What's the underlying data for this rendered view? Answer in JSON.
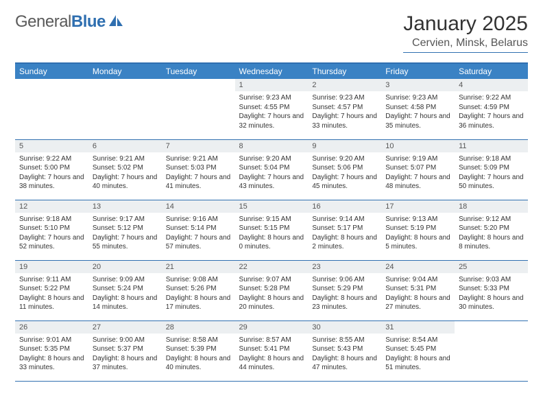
{
  "logo": {
    "text_a": "General",
    "text_b": "Blue"
  },
  "title": "January 2025",
  "location": "Cervien, Minsk, Belarus",
  "colors": {
    "header_bg": "#3a82c4",
    "border": "#2f6fb0",
    "daynum_bg": "#eceff1",
    "text": "#333333"
  },
  "weekdays": [
    "Sunday",
    "Monday",
    "Tuesday",
    "Wednesday",
    "Thursday",
    "Friday",
    "Saturday"
  ],
  "weeks": [
    [
      null,
      null,
      null,
      {
        "n": "1",
        "sr": "9:23 AM",
        "ss": "4:55 PM",
        "dl": "7 hours and 32 minutes."
      },
      {
        "n": "2",
        "sr": "9:23 AM",
        "ss": "4:57 PM",
        "dl": "7 hours and 33 minutes."
      },
      {
        "n": "3",
        "sr": "9:23 AM",
        "ss": "4:58 PM",
        "dl": "7 hours and 35 minutes."
      },
      {
        "n": "4",
        "sr": "9:22 AM",
        "ss": "4:59 PM",
        "dl": "7 hours and 36 minutes."
      }
    ],
    [
      {
        "n": "5",
        "sr": "9:22 AM",
        "ss": "5:00 PM",
        "dl": "7 hours and 38 minutes."
      },
      {
        "n": "6",
        "sr": "9:21 AM",
        "ss": "5:02 PM",
        "dl": "7 hours and 40 minutes."
      },
      {
        "n": "7",
        "sr": "9:21 AM",
        "ss": "5:03 PM",
        "dl": "7 hours and 41 minutes."
      },
      {
        "n": "8",
        "sr": "9:20 AM",
        "ss": "5:04 PM",
        "dl": "7 hours and 43 minutes."
      },
      {
        "n": "9",
        "sr": "9:20 AM",
        "ss": "5:06 PM",
        "dl": "7 hours and 45 minutes."
      },
      {
        "n": "10",
        "sr": "9:19 AM",
        "ss": "5:07 PM",
        "dl": "7 hours and 48 minutes."
      },
      {
        "n": "11",
        "sr": "9:18 AM",
        "ss": "5:09 PM",
        "dl": "7 hours and 50 minutes."
      }
    ],
    [
      {
        "n": "12",
        "sr": "9:18 AM",
        "ss": "5:10 PM",
        "dl": "7 hours and 52 minutes."
      },
      {
        "n": "13",
        "sr": "9:17 AM",
        "ss": "5:12 PM",
        "dl": "7 hours and 55 minutes."
      },
      {
        "n": "14",
        "sr": "9:16 AM",
        "ss": "5:14 PM",
        "dl": "7 hours and 57 minutes."
      },
      {
        "n": "15",
        "sr": "9:15 AM",
        "ss": "5:15 PM",
        "dl": "8 hours and 0 minutes."
      },
      {
        "n": "16",
        "sr": "9:14 AM",
        "ss": "5:17 PM",
        "dl": "8 hours and 2 minutes."
      },
      {
        "n": "17",
        "sr": "9:13 AM",
        "ss": "5:19 PM",
        "dl": "8 hours and 5 minutes."
      },
      {
        "n": "18",
        "sr": "9:12 AM",
        "ss": "5:20 PM",
        "dl": "8 hours and 8 minutes."
      }
    ],
    [
      {
        "n": "19",
        "sr": "9:11 AM",
        "ss": "5:22 PM",
        "dl": "8 hours and 11 minutes."
      },
      {
        "n": "20",
        "sr": "9:09 AM",
        "ss": "5:24 PM",
        "dl": "8 hours and 14 minutes."
      },
      {
        "n": "21",
        "sr": "9:08 AM",
        "ss": "5:26 PM",
        "dl": "8 hours and 17 minutes."
      },
      {
        "n": "22",
        "sr": "9:07 AM",
        "ss": "5:28 PM",
        "dl": "8 hours and 20 minutes."
      },
      {
        "n": "23",
        "sr": "9:06 AM",
        "ss": "5:29 PM",
        "dl": "8 hours and 23 minutes."
      },
      {
        "n": "24",
        "sr": "9:04 AM",
        "ss": "5:31 PM",
        "dl": "8 hours and 27 minutes."
      },
      {
        "n": "25",
        "sr": "9:03 AM",
        "ss": "5:33 PM",
        "dl": "8 hours and 30 minutes."
      }
    ],
    [
      {
        "n": "26",
        "sr": "9:01 AM",
        "ss": "5:35 PM",
        "dl": "8 hours and 33 minutes."
      },
      {
        "n": "27",
        "sr": "9:00 AM",
        "ss": "5:37 PM",
        "dl": "8 hours and 37 minutes."
      },
      {
        "n": "28",
        "sr": "8:58 AM",
        "ss": "5:39 PM",
        "dl": "8 hours and 40 minutes."
      },
      {
        "n": "29",
        "sr": "8:57 AM",
        "ss": "5:41 PM",
        "dl": "8 hours and 44 minutes."
      },
      {
        "n": "30",
        "sr": "8:55 AM",
        "ss": "5:43 PM",
        "dl": "8 hours and 47 minutes."
      },
      {
        "n": "31",
        "sr": "8:54 AM",
        "ss": "5:45 PM",
        "dl": "8 hours and 51 minutes."
      },
      null
    ]
  ],
  "labels": {
    "sunrise": "Sunrise:",
    "sunset": "Sunset:",
    "daylight": "Daylight:"
  }
}
